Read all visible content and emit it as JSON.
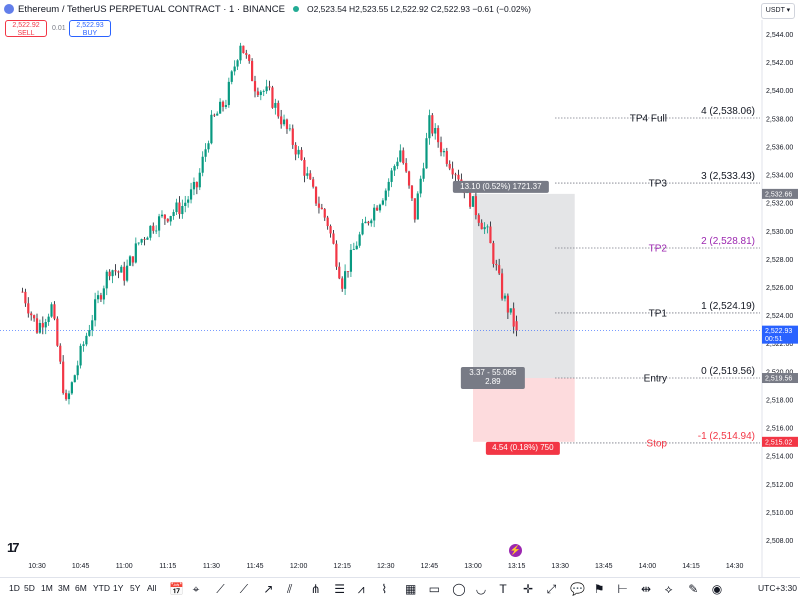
{
  "header": {
    "title": "Ethereum / TetherUS PERPETUAL CONTRACT · 1 · BINANCE",
    "ohlc": "O2,523.54 H2,523.55 L2,522.92 C2,522.93 −0.61 (−0.02%)"
  },
  "trade": {
    "sell_price": "2,522.92",
    "sell_label": "SELL",
    "spread": "0.01",
    "buy_price": "2,522.93",
    "buy_label": "BUY"
  },
  "currency": "USDT ▾",
  "colors": {
    "up": "#089981",
    "down": "#f23645",
    "accent": "#2962ff",
    "tp2": "#9c27b0"
  },
  "chart_data": {
    "type": "candlestick",
    "symbol": "ETHUSDT.P",
    "interval": "1",
    "x_ticks": [
      "10:30",
      "10:45",
      "11:00",
      "11:15",
      "11:30",
      "11:45",
      "12:00",
      "12:15",
      "12:30",
      "12:45",
      "13:00",
      "13:15",
      "13:30",
      "13:45",
      "14:00",
      "14:15",
      "14:30"
    ],
    "y_ticks": [
      "2,544.00",
      "2,542.00",
      "2,540.00",
      "2,538.00",
      "2,536.00",
      "2,534.00",
      "2,532.00",
      "2,530.00",
      "2,528.00",
      "2,526.00",
      "2,524.00",
      "2,522.00",
      "2,520.00",
      "2,518.00",
      "2,516.00",
      "2,514.00",
      "2,512.00",
      "2,510.00",
      "2,508.00"
    ],
    "ylim": [
      2506.9,
      2546.6
    ],
    "close_path": [
      [
        "10:25",
        2525.7
      ],
      [
        "10:30",
        2523.1
      ],
      [
        "10:35",
        2524.6
      ],
      [
        "10:40",
        2517.6
      ],
      [
        "10:45",
        2521.3
      ],
      [
        "10:50",
        2524.6
      ],
      [
        "10:55",
        2527.4
      ],
      [
        "11:00",
        2526.9
      ],
      [
        "11:05",
        2529.2
      ],
      [
        "11:10",
        2530.5
      ],
      [
        "11:15",
        2531.2
      ],
      [
        "11:20",
        2531.8
      ],
      [
        "11:25",
        2533.2
      ],
      [
        "11:30",
        2537.7
      ],
      [
        "11:35",
        2539.3
      ],
      [
        "11:40",
        2543.5
      ],
      [
        "11:45",
        2540.4
      ],
      [
        "11:50",
        2539.7
      ],
      [
        "11:55",
        2537.6
      ],
      [
        "12:00",
        2535.5
      ],
      [
        "12:05",
        2532.7
      ],
      [
        "12:10",
        2530.6
      ],
      [
        "12:15",
        2526.4
      ],
      [
        "12:20",
        2529.2
      ],
      [
        "12:25",
        2531.3
      ],
      [
        "12:30",
        2533.0
      ],
      [
        "12:35",
        2535.8
      ],
      [
        "12:40",
        2531.1
      ],
      [
        "12:45",
        2537.7
      ],
      [
        "12:50",
        2535.6
      ],
      [
        "12:55",
        2534.0
      ],
      [
        "13:00",
        2531.9
      ],
      [
        "13:05",
        2529.8
      ],
      [
        "13:10",
        2525.6
      ],
      [
        "13:15",
        2522.9
      ]
    ],
    "levels": [
      {
        "name": "TP4 Full",
        "value": 2538.06,
        "right": "4 (2,538.06)",
        "color": "#131722"
      },
      {
        "name": "TP3",
        "value": 2533.43,
        "right": "3 (2,533.43)",
        "color": "#131722"
      },
      {
        "name": "TP2",
        "value": 2528.81,
        "right": "2 (2,528.81)",
        "color": "#9c27b0"
      },
      {
        "name": "TP1",
        "value": 2524.19,
        "right": "1 (2,524.19)",
        "color": "#131722"
      },
      {
        "name": "Entry",
        "value": 2519.56,
        "right": "0 (2,519.56)",
        "color": "#131722"
      },
      {
        "name": "Stop",
        "value": 2514.94,
        "right": "-1 (2,514.94)",
        "color": "#f23645"
      }
    ],
    "position": {
      "entry": 2519.56,
      "target": 2532.66,
      "stop": 2515.02,
      "start_time": "13:00",
      "end_time": "13:35",
      "target_label": "13.10 (0.52%) 1721.37",
      "center_label_1": "3.37 - 55.066",
      "center_label_2": "2.89",
      "stop_label": "4.54 (0.18%) 750"
    },
    "price_tags": [
      {
        "text": "2,532.66",
        "color": "#787b86"
      },
      {
        "text": "2,522.93",
        "sub": "00:51",
        "color": "#2962ff"
      },
      {
        "text": "2,519.56",
        "color": "#787b86"
      },
      {
        "text": "2,515.02",
        "color": "#f23645"
      }
    ],
    "current_price": 2522.93
  },
  "bottom": {
    "timeframes": [
      "1D",
      "5D",
      "1M",
      "3M",
      "6M",
      "YTD",
      "1Y",
      "5Y",
      "All"
    ],
    "timezone": "UTC+3:30",
    "logo": "17"
  },
  "tools": [
    {
      "icon": "calendar-range-icon",
      "glyph": "📅"
    },
    {
      "icon": "cursor-icon",
      "glyph": "⌖"
    },
    {
      "icon": "trend-line-icon",
      "glyph": "⟋"
    },
    {
      "icon": "ray-icon",
      "glyph": "⟋"
    },
    {
      "icon": "extended-line-icon",
      "glyph": "↗"
    },
    {
      "icon": "parallel-channel-icon",
      "glyph": "⫽"
    },
    {
      "icon": "pitchfork-icon",
      "glyph": "⋔"
    },
    {
      "icon": "fib-icon",
      "glyph": "☰"
    },
    {
      "icon": "zigzag-icon",
      "glyph": "⩘"
    },
    {
      "icon": "pattern-icon",
      "glyph": "⌇"
    },
    {
      "icon": "gann-icon",
      "glyph": "▦"
    },
    {
      "icon": "rectangle-icon",
      "glyph": "▭"
    },
    {
      "icon": "circle-icon",
      "glyph": "◯"
    },
    {
      "icon": "arc-icon",
      "glyph": "◡"
    },
    {
      "icon": "text-icon",
      "glyph": "T"
    },
    {
      "icon": "crosshair-icon",
      "glyph": "✛"
    },
    {
      "icon": "measure-icon",
      "glyph": "⤢"
    },
    {
      "icon": "callout-icon",
      "glyph": "💬"
    },
    {
      "icon": "flag-icon",
      "glyph": "⚑"
    },
    {
      "icon": "price-range-icon",
      "glyph": "⊢"
    },
    {
      "icon": "date-range-icon",
      "glyph": "⇹"
    },
    {
      "icon": "path-icon",
      "glyph": "⟡"
    },
    {
      "icon": "brush-icon",
      "glyph": "✎"
    },
    {
      "icon": "eye-icon",
      "glyph": "◉"
    }
  ]
}
